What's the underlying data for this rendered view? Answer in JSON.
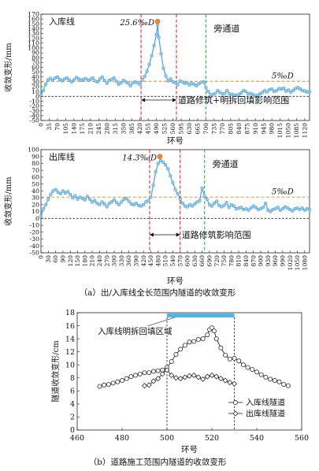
{
  "chart_data": [
    {
      "type": "line",
      "panel": "inbound",
      "ylabel": "收敛变形/mm",
      "xlabel": "环号",
      "xlim": [
        0,
        1140
      ],
      "ylim": [
        -50,
        170
      ],
      "xticks": [
        0,
        35,
        70,
        105,
        140,
        175,
        210,
        245,
        280,
        315,
        350,
        385,
        420,
        455,
        490,
        525,
        560,
        595,
        630,
        665,
        700,
        735,
        770,
        805,
        840,
        875,
        910,
        945,
        980,
        1015,
        1050,
        1085,
        1120
      ],
      "yticks": [
        -50,
        -40,
        -30,
        -20,
        -10,
        0,
        10,
        20,
        30,
        40,
        50,
        60,
        70,
        80,
        90,
        100,
        110,
        120,
        130,
        140,
        150,
        160,
        170
      ],
      "series_label": "入库线",
      "x": [
        0,
        10,
        20,
        30,
        40,
        50,
        60,
        70,
        80,
        90,
        100,
        110,
        120,
        130,
        140,
        150,
        160,
        170,
        180,
        190,
        200,
        210,
        220,
        230,
        240,
        250,
        260,
        270,
        280,
        290,
        300,
        310,
        320,
        330,
        340,
        350,
        360,
        370,
        380,
        390,
        400,
        410,
        420,
        430,
        440,
        450,
        460,
        470,
        480,
        490,
        495,
        500,
        510,
        520,
        530,
        540,
        550,
        560,
        570,
        580,
        590,
        600,
        610,
        620,
        630,
        640,
        650,
        660,
        670,
        680,
        690,
        700,
        710,
        720,
        730,
        740,
        750,
        760,
        770,
        780,
        790,
        800,
        810,
        820,
        830,
        840,
        850,
        860,
        870,
        880,
        890,
        900,
        910,
        920,
        930,
        940,
        950,
        960,
        970,
        980,
        990,
        1000,
        1010,
        1020,
        1030,
        1040,
        1050,
        1060,
        1070,
        1080,
        1090,
        1100,
        1110,
        1120,
        1130,
        1140
      ],
      "y": [
        3,
        12,
        25,
        34,
        37,
        33,
        38,
        40,
        35,
        32,
        36,
        38,
        34,
        30,
        34,
        39,
        36,
        33,
        35,
        37,
        33,
        35,
        38,
        32,
        30,
        36,
        40,
        33,
        27,
        33,
        35,
        38,
        31,
        25,
        28,
        33,
        30,
        27,
        22,
        28,
        30,
        28,
        25,
        34,
        41,
        52,
        66,
        84,
        105,
        128,
        148,
        122,
        88,
        58,
        42,
        32,
        36,
        30,
        28,
        24,
        32,
        30,
        27,
        28,
        24,
        27,
        25,
        22,
        26,
        29,
        30,
        18,
        10,
        3,
        4,
        6,
        12,
        8,
        5,
        6,
        12,
        5,
        4,
        3,
        2,
        4,
        7,
        12,
        10,
        5,
        6,
        4,
        1,
        2,
        5,
        8,
        12,
        9,
        14,
        15,
        10,
        12,
        16,
        15,
        17,
        11,
        13,
        9,
        12,
        16,
        18,
        15,
        12,
        11,
        9,
        10
      ],
      "peak": {
        "x": 495,
        "y": 155,
        "label": "25.6‰D"
      },
      "threshold": {
        "y": 31,
        "label": "5‰D"
      },
      "zero": 0,
      "vlines": [
        {
          "x": 425,
          "color": "#e8262b"
        },
        {
          "x": 575,
          "color": "#e8262b"
        },
        {
          "x": 700,
          "color": "#3aaa4a"
        }
      ],
      "annotations": [
        {
          "text": "旁通道"
        },
        {
          "text": "道路修筑+明拆回填影响范围"
        }
      ]
    },
    {
      "type": "line",
      "panel": "outbound",
      "ylabel": "收敛变形/mm",
      "xlabel": "环号",
      "xlim": [
        0,
        1100
      ],
      "ylim": [
        -50,
        100
      ],
      "xticks": [
        0,
        30,
        60,
        90,
        120,
        150,
        180,
        210,
        240,
        270,
        300,
        330,
        360,
        390,
        420,
        450,
        480,
        510,
        540,
        570,
        600,
        630,
        660,
        690,
        720,
        750,
        780,
        810,
        840,
        870,
        900,
        930,
        960,
        990,
        1020,
        1050,
        1080
      ],
      "yticks": [
        -50,
        -40,
        -30,
        -20,
        -10,
        0,
        10,
        20,
        30,
        40,
        50,
        60,
        70,
        80,
        90,
        100
      ],
      "series_label": "出库线",
      "x": [
        0,
        10,
        20,
        30,
        40,
        50,
        60,
        70,
        80,
        90,
        100,
        110,
        120,
        130,
        140,
        150,
        160,
        170,
        180,
        190,
        200,
        210,
        220,
        230,
        240,
        250,
        260,
        270,
        280,
        290,
        300,
        310,
        320,
        330,
        340,
        350,
        360,
        370,
        380,
        390,
        400,
        410,
        420,
        430,
        440,
        450,
        460,
        470,
        480,
        490,
        500,
        510,
        520,
        530,
        540,
        550,
        560,
        570,
        580,
        590,
        600,
        610,
        620,
        630,
        640,
        650,
        660,
        670,
        680,
        690,
        700,
        710,
        720,
        730,
        740,
        750,
        760,
        770,
        780,
        790,
        800,
        810,
        820,
        830,
        840,
        850,
        860,
        870,
        880,
        890,
        900,
        910,
        920,
        930,
        940,
        950,
        960,
        970,
        980,
        990,
        1000,
        1010,
        1020,
        1030,
        1040,
        1050,
        1060,
        1070,
        1080,
        1090,
        1100
      ],
      "y": [
        3,
        14,
        20,
        28,
        35,
        40,
        42,
        38,
        36,
        40,
        37,
        39,
        35,
        30,
        33,
        28,
        31,
        29,
        27,
        32,
        28,
        24,
        26,
        22,
        20,
        24,
        21,
        17,
        22,
        24,
        27,
        23,
        20,
        24,
        28,
        29,
        25,
        21,
        20,
        22,
        19,
        18,
        20,
        24,
        26,
        31,
        48,
        68,
        80,
        84,
        82,
        78,
        72,
        62,
        52,
        42,
        36,
        28,
        22,
        18,
        17,
        20,
        18,
        21,
        24,
        26,
        44,
        32,
        28,
        20,
        18,
        22,
        25,
        19,
        17,
        19,
        23,
        16,
        20,
        18,
        14,
        15,
        16,
        13,
        14,
        12,
        15,
        18,
        16,
        13,
        14,
        16,
        22,
        12,
        10,
        13,
        14,
        16,
        12,
        14,
        17,
        15,
        13,
        11,
        14,
        15,
        13,
        15,
        12,
        14,
        13
      ],
      "peak": {
        "x": 487,
        "y": 90,
        "label": "14.3‰D"
      },
      "threshold": {
        "y": 31,
        "label": "5‰D"
      },
      "zero": 0,
      "vlines": [
        {
          "x": 445,
          "color": "#e8262b"
        },
        {
          "x": 570,
          "color": "#e8262b"
        },
        {
          "x": 670,
          "color": "#3aaa4a"
        }
      ],
      "annotations": [
        {
          "text": "旁通道"
        },
        {
          "text": "道路修筑影响范围"
        }
      ]
    },
    {
      "type": "line",
      "panel": "construction",
      "xlabel": "环号",
      "ylabel": "隧道收敛变形/cm",
      "xlim": [
        460,
        560
      ],
      "ylim": [
        0,
        18
      ],
      "xticks": [
        460,
        480,
        500,
        520,
        540,
        560
      ],
      "yticks": [
        0,
        2,
        4,
        6,
        8,
        10,
        12,
        14,
        16,
        18
      ],
      "series": [
        {
          "name": "入库线隧道",
          "marker": "circle",
          "x": [
            470,
            472,
            474,
            476,
            478,
            480,
            482,
            484,
            486,
            488,
            490,
            492,
            494,
            496,
            498,
            500,
            502,
            504,
            506,
            508,
            510,
            512,
            514,
            516,
            518,
            519,
            520,
            521,
            522,
            524,
            526,
            528,
            530,
            532,
            534,
            536,
            538,
            540,
            542,
            544,
            546,
            548,
            550,
            552,
            554
          ],
          "y": [
            6.7,
            6.9,
            7.0,
            7.2,
            7.4,
            7.6,
            7.9,
            8.2,
            8.4,
            8.6,
            8.8,
            8.8,
            9.0,
            9.1,
            9.2,
            9.6,
            10.5,
            11.6,
            12.4,
            13.0,
            13.5,
            13.6,
            13.9,
            14.0,
            14.6,
            15.4,
            15.7,
            15.2,
            14.0,
            12.6,
            11.5,
            10.9,
            11.0,
            10.6,
            10.0,
            9.6,
            9.3,
            8.9,
            8.5,
            8.1,
            7.8,
            7.6,
            7.4,
            7.0,
            6.8
          ]
        },
        {
          "name": "出库线隧道",
          "marker": "diamond",
          "x": [
            490,
            492,
            494,
            496,
            498,
            500,
            502,
            504,
            506,
            508,
            510,
            512,
            514,
            516,
            518,
            520,
            522,
            524,
            526,
            528,
            530
          ],
          "y": [
            6.8,
            6.9,
            7.5,
            7.9,
            8.6,
            9.2,
            8.4,
            8.0,
            7.9,
            8.1,
            8.3,
            8.4,
            8.1,
            7.8,
            8.2,
            8.4,
            8.2,
            7.9,
            7.6,
            7.3,
            7.1
          ]
        }
      ],
      "vlines": [
        {
          "x": 500
        },
        {
          "x": 530
        }
      ],
      "bar": {
        "x0": 500,
        "x1": 530,
        "color": "#4fb7e3"
      },
      "annotation": "入库线明拆回填区域"
    }
  ],
  "captions": {
    "a": "（a）出/入库线全长范围内隧道的收敛变形",
    "b": "（b）道路施工范围内隧道的收敛变形"
  }
}
